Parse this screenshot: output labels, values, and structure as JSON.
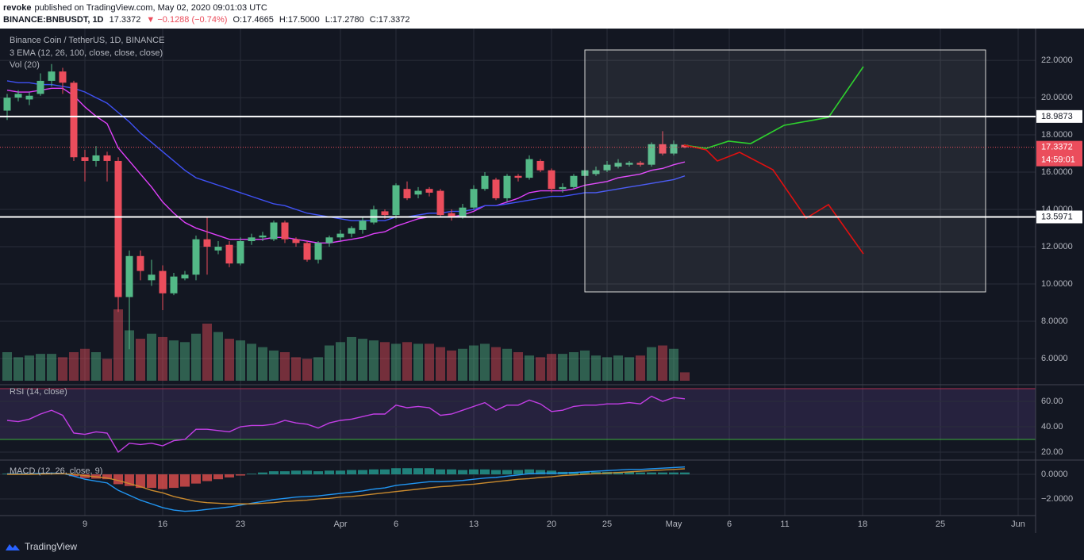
{
  "header": {
    "author": "revoke",
    "published": "published on TradingView.com, May 02, 2020 09:01:03 UTC",
    "symbol": "BINANCE:BNBUSDT, 1D",
    "last": "17.3372",
    "change": "▼ −0.1288 (−0.74%)",
    "open": "O:17.4665",
    "high": "H:17.5000",
    "low": "L:17.2780",
    "close": "C:17.3372"
  },
  "footer": {
    "brand": "TradingView"
  },
  "chart_data": [
    {
      "type": "candlestick",
      "title": "Binance Coin / TetherUS, 1D, BINANCE",
      "indicator": "3 EMA (12, 26, 100, close, close, close)",
      "volume_label": "Vol (20)",
      "categories": [
        null,
        null,
        null,
        null,
        null,
        null,
        null,
        "9",
        null,
        null,
        null,
        null,
        null,
        null,
        "16",
        null,
        null,
        null,
        null,
        null,
        null,
        "23",
        null,
        null,
        null,
        null,
        null,
        null,
        null,
        null,
        "Apr",
        null,
        null,
        null,
        null,
        "6",
        null,
        null,
        null,
        null,
        null,
        null,
        "13",
        null,
        null,
        null,
        null,
        null,
        null,
        "20",
        null,
        null,
        null,
        null,
        "25",
        null,
        null,
        null,
        null,
        null,
        "May",
        null,
        null,
        null,
        null,
        "6",
        null,
        null,
        null,
        null,
        "11",
        null,
        null,
        null,
        null,
        null,
        null,
        "18",
        null,
        null,
        null,
        null,
        null,
        null,
        "25",
        null,
        null,
        null,
        null,
        null,
        null,
        "Jun"
      ],
      "open": [
        19.3,
        20.0,
        19.9,
        20.2,
        20.9,
        21.4,
        20.8,
        16.8,
        16.6,
        16.9,
        16.6,
        9.3,
        11.5,
        10.2,
        10.7,
        9.5,
        10.3,
        10.5,
        12.4,
        11.8,
        12.1,
        11.1,
        12.3,
        12.5,
        12.4,
        13.3,
        12.4,
        12.2,
        11.3,
        12.2,
        12.5,
        12.7,
        12.9,
        13.3,
        13.9,
        13.7,
        15.1,
        14.8,
        15.1,
        15.0,
        13.8,
        13.6,
        14.1,
        15.1,
        15.6,
        14.6,
        15.8,
        15.7,
        16.6,
        16.1,
        15.1,
        15.2,
        15.8,
        15.9,
        16.1,
        16.3,
        16.4,
        16.5,
        16.4,
        17.5,
        17.0,
        17.4665,
        null,
        null,
        null,
        null,
        null,
        null,
        null,
        null,
        null,
        null,
        null,
        null,
        null,
        null,
        null,
        null,
        null,
        null,
        null,
        null,
        null,
        null,
        null,
        null,
        null,
        null,
        null,
        null,
        null,
        null
      ],
      "high": [
        20.2,
        20.4,
        20.3,
        21.3,
        21.8,
        21.6,
        20.9,
        17.2,
        17.4,
        17.1,
        16.8,
        11.8,
        11.8,
        11.3,
        11.0,
        10.6,
        10.7,
        12.6,
        13.6,
        12.3,
        12.3,
        12.5,
        12.7,
        12.8,
        13.4,
        13.4,
        12.5,
        12.3,
        12.3,
        12.6,
        12.9,
        13.1,
        13.6,
        14.2,
        14.0,
        15.4,
        15.5,
        15.2,
        15.2,
        15.1,
        14.0,
        14.3,
        15.3,
        16.0,
        15.7,
        15.9,
        15.9,
        16.9,
        16.7,
        16.2,
        15.4,
        15.9,
        16.3,
        16.3,
        16.6,
        16.7,
        16.6,
        16.6,
        17.6,
        18.2,
        17.7,
        17.5,
        null,
        null,
        null,
        null,
        null,
        null,
        null,
        null,
        null,
        null,
        null,
        null,
        null,
        null,
        null,
        null,
        null,
        null,
        null,
        null,
        null,
        null,
        null,
        null,
        null,
        null,
        null,
        null,
        null,
        null
      ],
      "low": [
        18.8,
        19.8,
        19.6,
        20.1,
        20.6,
        20.2,
        16.6,
        15.5,
        16.3,
        15.5,
        8.5,
        6.5,
        10.2,
        9.9,
        8.6,
        9.4,
        10.2,
        10.2,
        10.5,
        11.6,
        10.9,
        11.0,
        12.1,
        12.3,
        12.3,
        12.2,
        12.0,
        11.2,
        11.1,
        12.0,
        12.3,
        12.5,
        12.7,
        13.2,
        13.5,
        13.5,
        14.5,
        14.6,
        14.7,
        13.6,
        13.4,
        13.5,
        14.0,
        15.0,
        14.5,
        14.4,
        15.5,
        15.6,
        16.0,
        14.9,
        14.9,
        15.1,
        15.7,
        15.8,
        16.0,
        16.2,
        16.3,
        16.3,
        16.3,
        16.9,
        16.9,
        17.278,
        null,
        null,
        null,
        null,
        null,
        null,
        null,
        null,
        null,
        null,
        null,
        null,
        null,
        null,
        null,
        null,
        null,
        null,
        null,
        null,
        null,
        null,
        null,
        null,
        null,
        null,
        null,
        null,
        null,
        null
      ],
      "close": [
        20.0,
        20.2,
        20.1,
        20.9,
        21.4,
        20.8,
        16.8,
        16.6,
        16.9,
        16.6,
        9.3,
        11.5,
        10.7,
        10.5,
        9.5,
        10.4,
        10.5,
        12.4,
        12.0,
        12.0,
        11.1,
        12.3,
        12.5,
        12.6,
        13.3,
        12.4,
        12.2,
        11.3,
        12.2,
        12.5,
        12.7,
        13.0,
        13.4,
        14.0,
        13.7,
        15.3,
        14.6,
        15.0,
        14.9,
        13.7,
        13.6,
        14.1,
        15.1,
        15.8,
        14.6,
        15.8,
        15.7,
        16.7,
        16.1,
        15.1,
        15.2,
        15.8,
        16.1,
        16.1,
        16.4,
        16.5,
        16.5,
        16.4,
        17.5,
        17.0,
        17.5,
        17.3372,
        null,
        null,
        null,
        null,
        null,
        null,
        null,
        null,
        null,
        null,
        null,
        null,
        null,
        null,
        null,
        null,
        null,
        null,
        null,
        null,
        null,
        null,
        null,
        null,
        null,
        null,
        null,
        null,
        null,
        null
      ],
      "volume": [
        34,
        28,
        30,
        32,
        32,
        28,
        34,
        38,
        34,
        26,
        85,
        60,
        50,
        56,
        52,
        48,
        46,
        56,
        68,
        58,
        50,
        48,
        44,
        40,
        36,
        34,
        28,
        26,
        28,
        42,
        46,
        52,
        50,
        48,
        46,
        44,
        46,
        44,
        44,
        40,
        36,
        38,
        42,
        44,
        40,
        38,
        34,
        30,
        28,
        32,
        32,
        34,
        36,
        30,
        28,
        30,
        28,
        30,
        40,
        42,
        38,
        10,
        null,
        null,
        null,
        null,
        null,
        null,
        null,
        null,
        null,
        null,
        null,
        null,
        null,
        null,
        null,
        null,
        null,
        null,
        null,
        null,
        null,
        null,
        null,
        null,
        null,
        null,
        null,
        null,
        null,
        null
      ],
      "ema": [
        {
          "color": "#e040fb",
          "values": [
            20.4,
            20.3,
            20.3,
            20.4,
            20.5,
            20.5,
            20.1,
            19.5,
            19.0,
            18.6,
            17.3,
            16.6,
            15.9,
            15.2,
            14.4,
            13.8,
            13.3,
            13.0,
            12.8,
            12.6,
            12.4,
            12.4,
            12.4,
            12.4,
            12.5,
            12.5,
            12.4,
            12.3,
            12.2,
            12.2,
            12.3,
            12.4,
            12.5,
            12.7,
            12.8,
            13.1,
            13.3,
            13.5,
            13.6,
            13.6,
            13.6,
            13.7,
            13.9,
            14.2,
            14.2,
            14.4,
            14.6,
            14.9,
            15.0,
            15.0,
            15.0,
            15.1,
            15.3,
            15.4,
            15.5,
            15.7,
            15.8,
            15.9,
            16.1,
            16.2,
            16.4,
            16.55,
            null,
            null,
            null,
            null,
            null,
            null,
            null,
            null,
            null,
            null,
            null,
            null,
            null,
            null,
            null,
            null,
            null,
            null,
            null,
            null,
            null,
            null,
            null,
            null,
            null,
            null,
            null,
            null,
            null,
            null
          ]
        },
        {
          "color": "#3f51f5",
          "values": [
            20.9,
            20.8,
            20.8,
            20.7,
            20.7,
            20.6,
            20.5,
            20.3,
            20.0,
            19.7,
            19.2,
            18.7,
            18.1,
            17.6,
            17.1,
            16.6,
            16.1,
            15.7,
            15.5,
            15.3,
            15.1,
            14.9,
            14.7,
            14.5,
            14.3,
            14.2,
            14.0,
            13.8,
            13.7,
            13.6,
            13.5,
            13.4,
            13.4,
            13.4,
            13.4,
            13.6,
            13.6,
            13.7,
            13.8,
            13.8,
            13.9,
            13.9,
            14.0,
            14.2,
            14.2,
            14.3,
            14.4,
            14.5,
            14.6,
            14.7,
            14.7,
            14.8,
            14.9,
            14.9,
            15.0,
            15.1,
            15.2,
            15.3,
            15.4,
            15.5,
            15.6,
            15.8,
            null,
            null,
            null,
            null,
            null,
            null,
            null,
            null,
            null,
            null,
            null,
            null,
            null,
            null,
            null,
            null,
            null,
            null,
            null,
            null,
            null,
            null,
            null,
            null,
            null,
            null,
            null,
            null,
            null,
            null
          ]
        }
      ],
      "up_color": "#53b987",
      "down_color": "#eb4d5c",
      "levels": [
        {
          "value": 18.9873,
          "label": "18.9873"
        },
        {
          "value": 13.5971,
          "label": "13.5971"
        }
      ],
      "last_price": {
        "value": 17.3372,
        "label": "17.3372"
      },
      "countdown": "14:59:01",
      "ylim": [
        4.81,
        23.62
      ],
      "yticks": [
        {
          "value": 6,
          "label": "6.0000"
        },
        {
          "value": 8,
          "label": "8.0000"
        },
        {
          "value": 10,
          "label": "10.0000"
        },
        {
          "value": 12,
          "label": "12.0000"
        },
        {
          "value": 14,
          "label": "14.0000"
        },
        {
          "value": 16,
          "label": "16.0000"
        },
        {
          "value": 18,
          "label": "18.0000"
        },
        {
          "value": 20,
          "label": "20.0000"
        },
        {
          "value": 22,
          "label": "22.0000"
        }
      ],
      "grid": true
    },
    {
      "type": "line",
      "title": "RSI (14, close)",
      "color": "#c33ee6",
      "values": [
        45,
        44,
        46,
        50,
        53,
        49,
        35,
        34,
        36,
        35,
        20,
        27,
        26,
        27,
        25,
        29,
        30,
        38,
        38,
        37,
        36,
        40,
        41,
        41,
        42,
        45,
        43,
        42,
        39,
        43,
        45,
        46,
        48,
        50,
        50,
        57,
        55,
        56,
        55,
        49,
        50,
        53,
        56,
        59,
        53,
        57,
        57,
        61,
        58,
        52,
        53,
        56,
        57,
        57,
        58,
        58,
        59,
        58,
        64,
        60,
        63,
        62,
        null,
        null,
        null,
        null,
        null,
        null,
        null,
        null,
        null,
        null,
        null,
        null,
        null,
        null,
        null,
        null,
        null,
        null,
        null,
        null,
        null,
        null,
        null,
        null,
        null,
        null,
        null,
        null,
        null,
        null
      ],
      "bands": [
        70,
        30
      ],
      "ylim": [
        15,
        71.25
      ],
      "yticks": [
        {
          "value": 20,
          "label": "20.00"
        },
        {
          "value": 40,
          "label": "40.00"
        },
        {
          "value": 60,
          "label": "60.00"
        }
      ]
    },
    {
      "type": "macd",
      "title": "MACD (12, 26, close, 9)",
      "macd_color": "#2196f3",
      "signal_color": "#c98a2e",
      "macd": [
        0.05,
        0.05,
        0.05,
        0.08,
        0.1,
        0.08,
        -0.15,
        -0.4,
        -0.55,
        -0.7,
        -1.3,
        -1.7,
        -2.1,
        -2.4,
        -2.7,
        -2.9,
        -3.0,
        -2.95,
        -2.85,
        -2.75,
        -2.65,
        -2.5,
        -2.35,
        -2.2,
        -2.05,
        -1.95,
        -1.85,
        -1.8,
        -1.75,
        -1.65,
        -1.55,
        -1.45,
        -1.35,
        -1.2,
        -1.1,
        -0.9,
        -0.8,
        -0.7,
        -0.6,
        -0.6,
        -0.55,
        -0.5,
        -0.4,
        -0.3,
        -0.25,
        -0.15,
        -0.05,
        0.05,
        0.1,
        0.1,
        0.1,
        0.15,
        0.2,
        0.25,
        0.3,
        0.35,
        0.4,
        0.4,
        0.45,
        0.5,
        0.55,
        0.6,
        null,
        null,
        null,
        null,
        null,
        null,
        null,
        null,
        null,
        null,
        null,
        null,
        null,
        null,
        null,
        null,
        null,
        null,
        null,
        null,
        null,
        null,
        null,
        null,
        null,
        null,
        null,
        null,
        null,
        null
      ],
      "signal": [
        0.0,
        0.0,
        0.0,
        0.02,
        0.04,
        0.05,
        0.0,
        -0.1,
        -0.2,
        -0.3,
        -0.5,
        -0.75,
        -1.0,
        -1.3,
        -1.5,
        -1.8,
        -2.0,
        -2.2,
        -2.3,
        -2.35,
        -2.4,
        -2.4,
        -2.4,
        -2.35,
        -2.3,
        -2.2,
        -2.15,
        -2.1,
        -2.0,
        -1.95,
        -1.85,
        -1.8,
        -1.7,
        -1.6,
        -1.5,
        -1.4,
        -1.3,
        -1.2,
        -1.1,
        -1.0,
        -0.95,
        -0.85,
        -0.8,
        -0.7,
        -0.6,
        -0.5,
        -0.4,
        -0.35,
        -0.25,
        -0.2,
        -0.1,
        -0.05,
        0.0,
        0.05,
        0.1,
        0.15,
        0.2,
        0.25,
        0.3,
        0.35,
        0.4,
        0.45,
        null,
        null,
        null,
        null,
        null,
        null,
        null,
        null,
        null,
        null,
        null,
        null,
        null,
        null,
        null,
        null,
        null,
        null,
        null,
        null,
        null,
        null,
        null,
        null,
        null,
        null,
        null,
        null,
        null,
        null
      ],
      "histogram": [
        0.05,
        0.05,
        0.05,
        0.06,
        0.06,
        0.03,
        -0.15,
        -0.3,
        -0.35,
        -0.4,
        -0.8,
        -0.95,
        -1.1,
        -1.1,
        -1.2,
        -1.1,
        -1.0,
        -0.75,
        -0.55,
        -0.4,
        -0.25,
        -0.1,
        0.05,
        0.15,
        0.25,
        0.25,
        0.3,
        0.3,
        0.25,
        0.3,
        0.3,
        0.35,
        0.35,
        0.4,
        0.4,
        0.5,
        0.5,
        0.5,
        0.5,
        0.4,
        0.4,
        0.35,
        0.4,
        0.4,
        0.35,
        0.35,
        0.35,
        0.4,
        0.35,
        0.3,
        0.2,
        0.2,
        0.2,
        0.2,
        0.2,
        0.2,
        0.2,
        0.15,
        0.15,
        0.15,
        0.15,
        0.15,
        null,
        null,
        null,
        null,
        null,
        null,
        null,
        null,
        null,
        null,
        null,
        null,
        null,
        null,
        null,
        null,
        null,
        null,
        null,
        null,
        null,
        null,
        null,
        null,
        null,
        null,
        null,
        null,
        null,
        null
      ],
      "ylim": [
        -3.35,
        1.03
      ],
      "yticks": [
        {
          "value": -2,
          "label": "−2.0000"
        },
        {
          "value": 0,
          "label": "0.0000"
        }
      ]
    }
  ]
}
